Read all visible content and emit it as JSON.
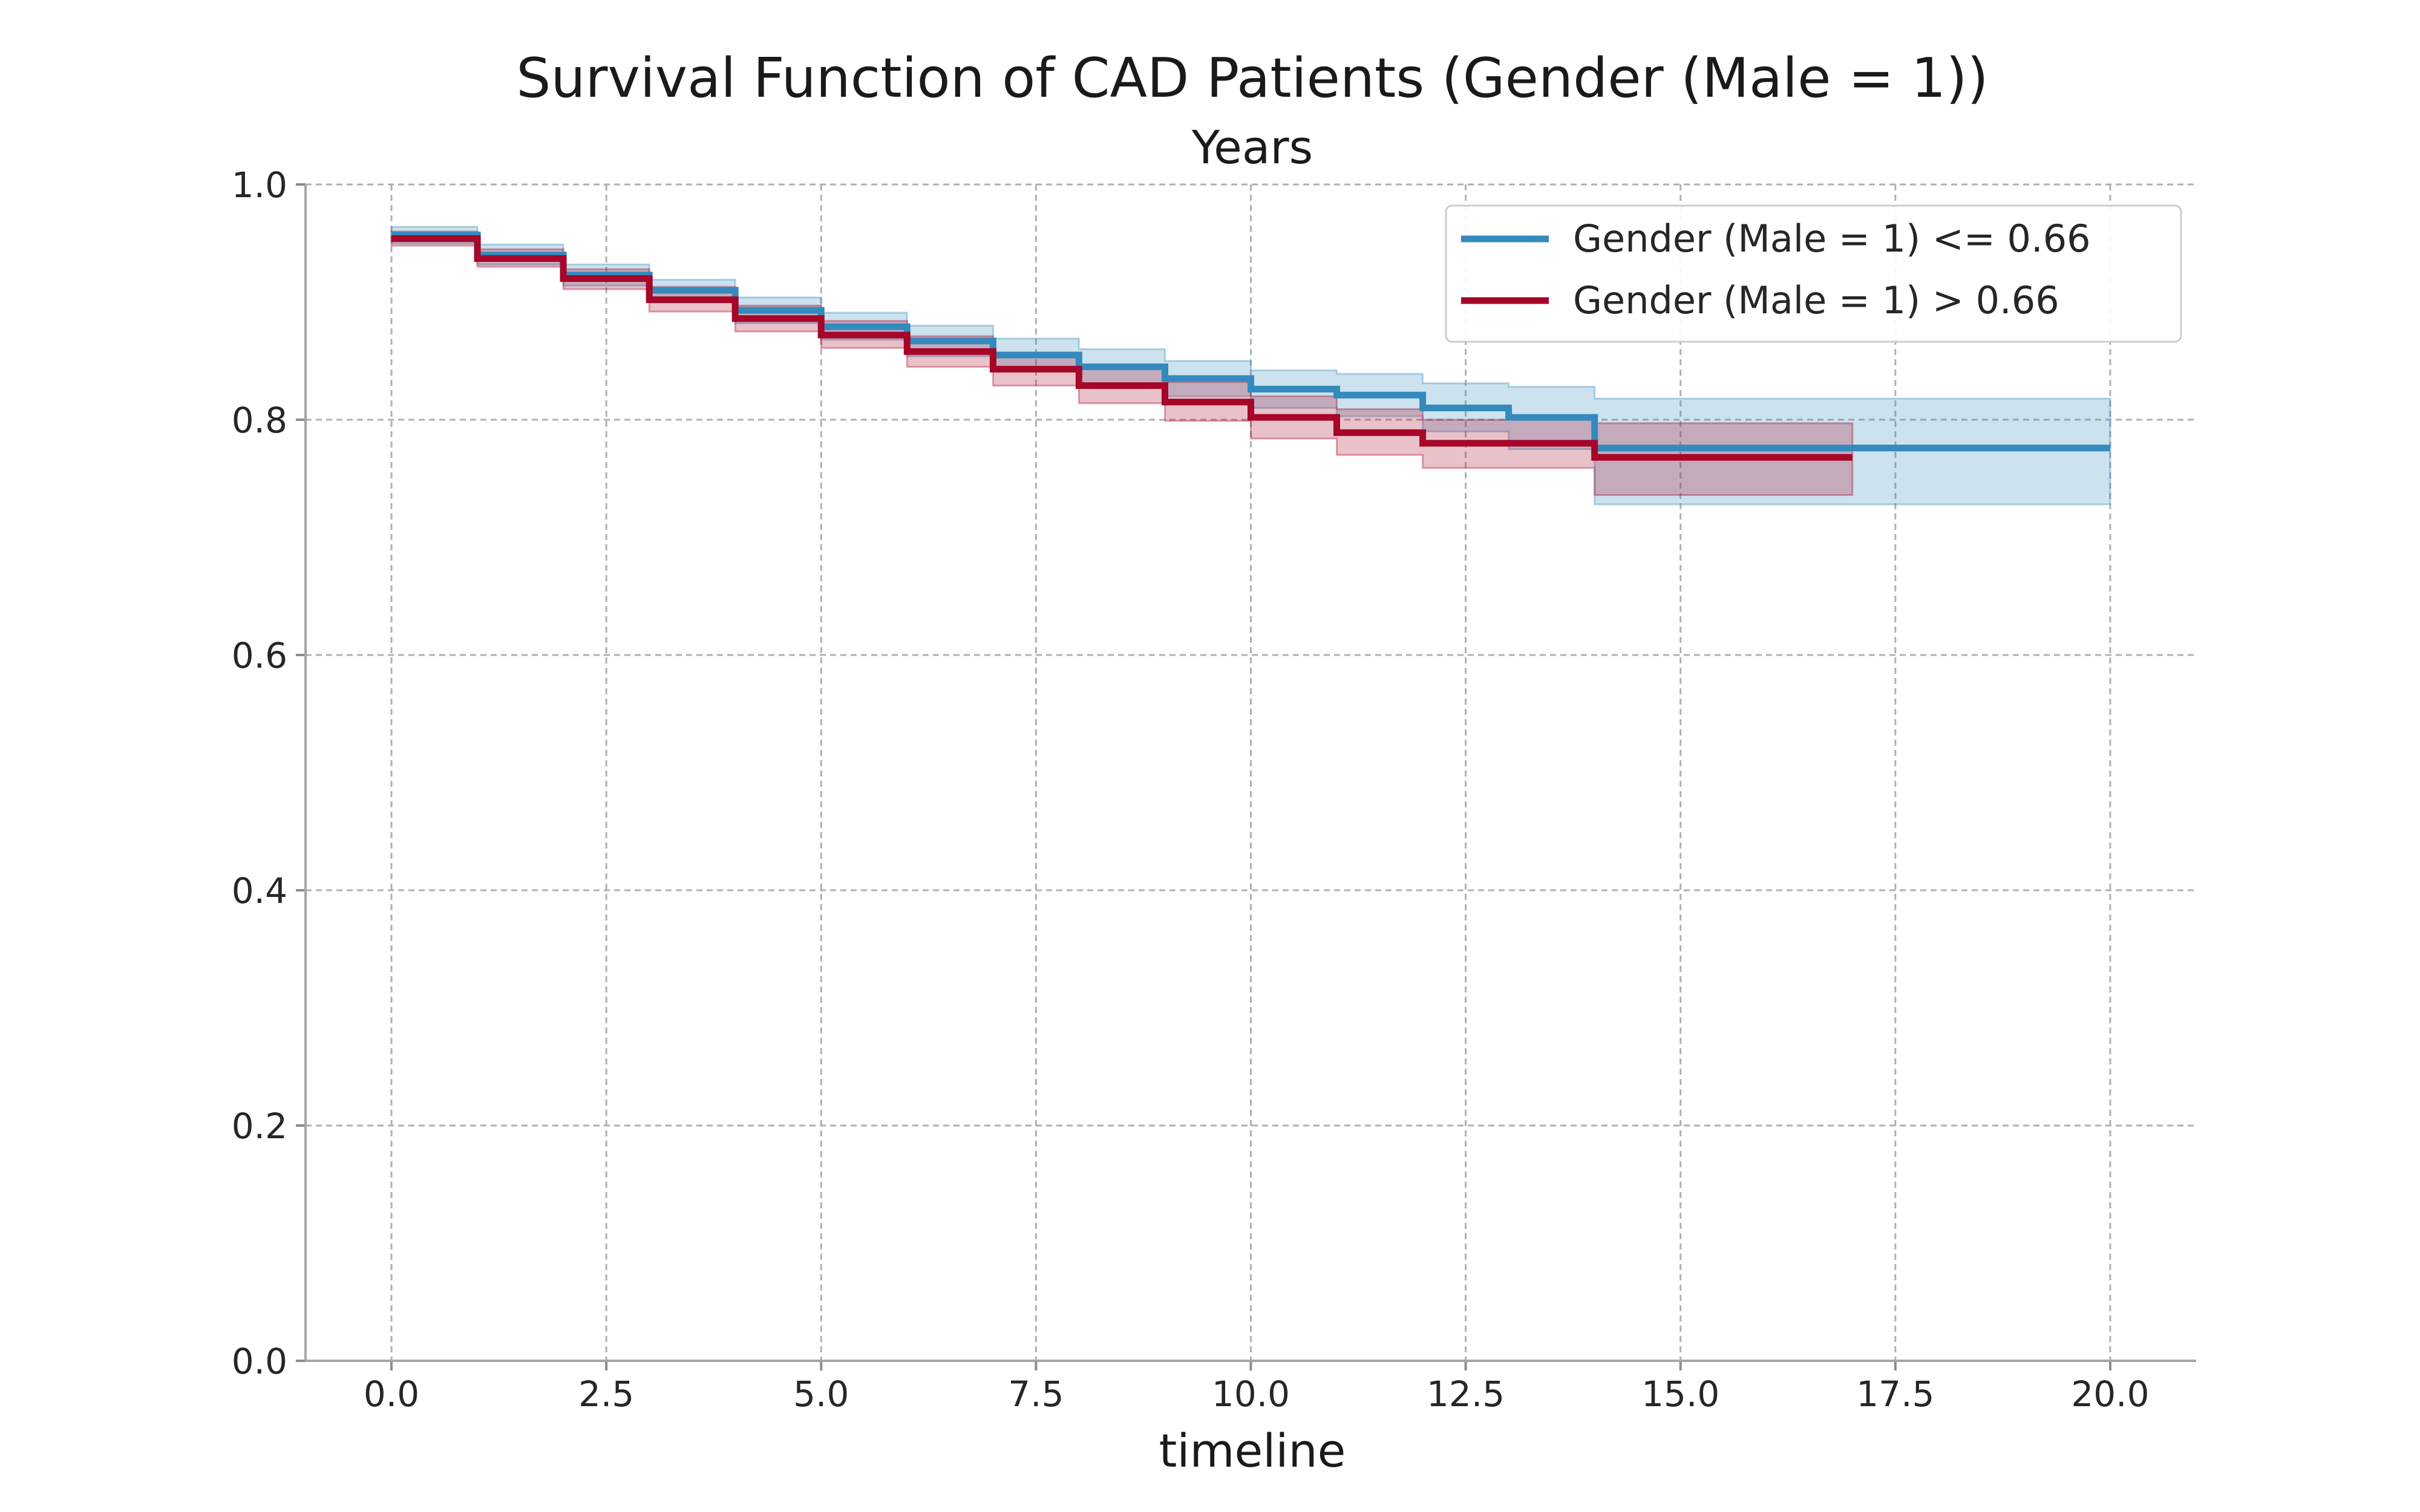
{
  "chart_data": {
    "type": "line",
    "title": "Survival Function of CAD Patients (Gender (Male = 1))",
    "subtitle": "Years",
    "xlabel": "timeline",
    "ylabel": "",
    "xlim": [
      -1.0,
      21.0
    ],
    "ylim": [
      0.0,
      1.0
    ],
    "x_ticks": [
      "0.0",
      "2.5",
      "5.0",
      "7.5",
      "10.0",
      "12.5",
      "15.0",
      "17.5",
      "20.0"
    ],
    "y_ticks": [
      "0.0",
      "0.2",
      "0.4",
      "0.6",
      "0.8",
      "1.0"
    ],
    "grid": true,
    "legend_position": "top-right",
    "series": [
      {
        "name": "Gender (Male = 1) <= 0.66",
        "color": "#348abd",
        "x": [
          0,
          1,
          2,
          3,
          4,
          5,
          6,
          7,
          8,
          9,
          10,
          11,
          12,
          13,
          14,
          20
        ],
        "y": [
          0.957,
          0.94,
          0.923,
          0.91,
          0.893,
          0.879,
          0.867,
          0.855,
          0.845,
          0.835,
          0.826,
          0.821,
          0.81,
          0.802,
          0.776,
          0.776
        ],
        "ci_lower": [
          0.95,
          0.932,
          0.914,
          0.901,
          0.882,
          0.868,
          0.854,
          0.842,
          0.831,
          0.82,
          0.81,
          0.803,
          0.79,
          0.775,
          0.728,
          0.728
        ],
        "ci_upper": [
          0.964,
          0.949,
          0.932,
          0.919,
          0.904,
          0.891,
          0.88,
          0.869,
          0.86,
          0.85,
          0.842,
          0.839,
          0.831,
          0.828,
          0.818,
          0.818
        ]
      },
      {
        "name": "Gender (Male = 1) > 0.66",
        "color": "#a60628",
        "x": [
          0,
          1,
          2,
          3,
          4,
          5,
          6,
          7,
          8,
          9,
          10,
          11,
          12,
          14,
          17
        ],
        "y": [
          0.954,
          0.937,
          0.92,
          0.902,
          0.886,
          0.872,
          0.858,
          0.843,
          0.829,
          0.815,
          0.802,
          0.789,
          0.78,
          0.768,
          0.768
        ],
        "ci_lower": [
          0.948,
          0.93,
          0.911,
          0.892,
          0.875,
          0.861,
          0.845,
          0.829,
          0.814,
          0.799,
          0.784,
          0.77,
          0.759,
          0.736,
          0.736
        ],
        "ci_upper": [
          0.96,
          0.945,
          0.928,
          0.913,
          0.897,
          0.884,
          0.871,
          0.857,
          0.844,
          0.832,
          0.82,
          0.809,
          0.8,
          0.797,
          0.797
        ]
      }
    ]
  }
}
